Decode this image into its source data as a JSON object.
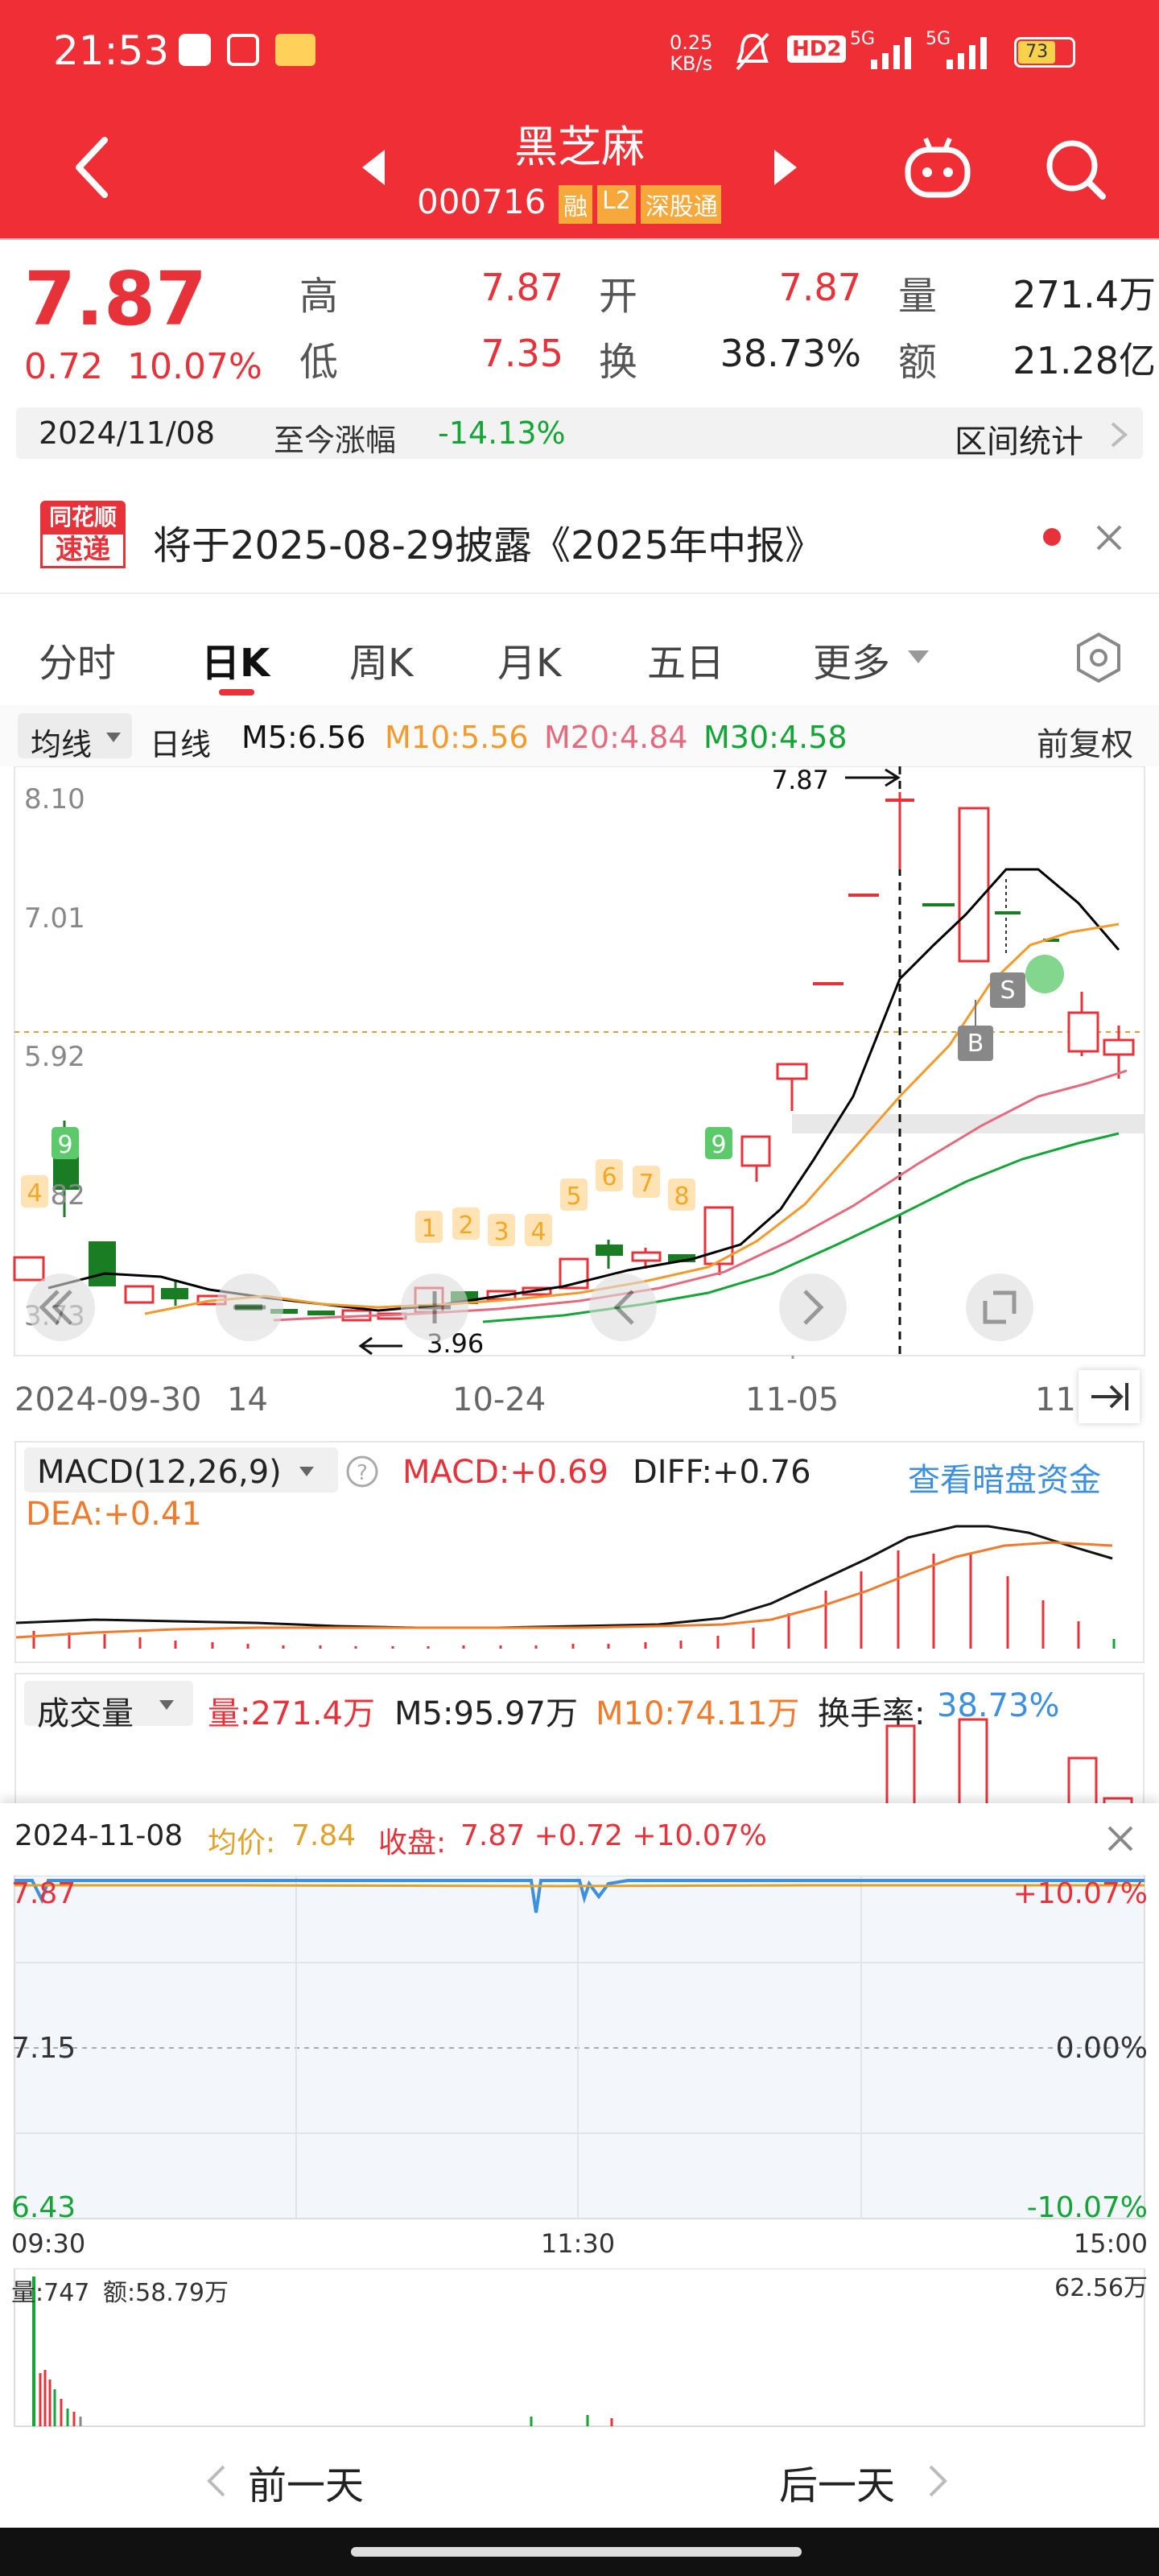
{
  "status_bar": {
    "time": "21:53",
    "net_speed": "0.25",
    "net_unit": "KB/s",
    "hd": "HD2",
    "sig1": "5G",
    "sig2": "5G",
    "battery": "73"
  },
  "header": {
    "title": "黑芝麻",
    "code": "000716",
    "tags": [
      "融",
      "L2",
      "深股通"
    ]
  },
  "quote": {
    "price": "7.87",
    "change": "0.72",
    "change_pct": "10.07%",
    "high_label": "高",
    "high": "7.87",
    "open_label": "开",
    "open": "7.87",
    "vol_label": "量",
    "vol": "271.4万",
    "low_label": "低",
    "low": "7.35",
    "turn_label": "换",
    "turn": "38.73%",
    "amt_label": "额",
    "amt": "21.28亿",
    "date": "2024/11/08",
    "since_label": "至今涨幅",
    "since": "-14.13%",
    "range_stats": "区间统计"
  },
  "notice": {
    "brand_top": "同花顺",
    "brand_bottom": "速递",
    "text": "将于2025-08-29披露《2025年中报》"
  },
  "tabs": [
    "分时",
    "日K",
    "周K",
    "月K",
    "五日",
    "更多"
  ],
  "tab_active": 1,
  "ma_bar": {
    "selector": "均线",
    "period": "日线",
    "m5": "M5:6.56",
    "m10": "M10:5.56",
    "m20": "M20:4.84",
    "m30": "M30:4.58",
    "adjust": "前复权"
  },
  "chart": {
    "y_top": "8.10",
    "y_2": "7.01",
    "y_3": "5.92",
    "y_4": "4.82",
    "y_5": "3.73",
    "max_label": "7.87",
    "min_label": "3.96",
    "b_marker": "B",
    "s_marker": "S",
    "x_dates": [
      "2024-09-30",
      "14",
      "10-24",
      "11-05",
      "11"
    ],
    "td_orange": [
      "1",
      "2",
      "3",
      "4",
      "5",
      "6",
      "7",
      "8"
    ],
    "td_green": [
      "9",
      "9"
    ],
    "td_left": "4"
  },
  "macd": {
    "selector": "MACD(12,26,9)",
    "macd": "MACD:+0.69",
    "diff": "DIFF:+0.76",
    "dea": "DEA:+0.41",
    "link": "查看暗盘资金"
  },
  "volume": {
    "selector": "成交量",
    "vol": "量:271.4万",
    "m5": "M5:95.97万",
    "m10": "M10:74.11万",
    "turn_label": "换手率:",
    "turn_val": "38.73%"
  },
  "intraday": {
    "date": "2024-11-08",
    "avg_label": "均价:",
    "avg": "7.84",
    "close_label": "收盘:",
    "close": "7.87 +0.72 +10.07%",
    "y_top": "7.87",
    "y_mid": "7.15",
    "y_bot": "6.43",
    "pct_top": "+10.07%",
    "pct_mid": "0.00%",
    "pct_bot": "-10.07%",
    "t_start": "09:30",
    "t_mid": "11:30",
    "t_end": "15:00",
    "vol_label": "量:747",
    "amt_label": "额:58.79万",
    "vol_max": "62.56万"
  },
  "footer": {
    "prev": "前一天",
    "next": "后一天"
  },
  "colors": {
    "red": "#ef2f35",
    "up": "#e8323a",
    "down": "#1a7d23",
    "green": "#13a536",
    "orange": "#f39a2b",
    "pink": "#e46a7d",
    "blue": "#3d8fe0"
  }
}
